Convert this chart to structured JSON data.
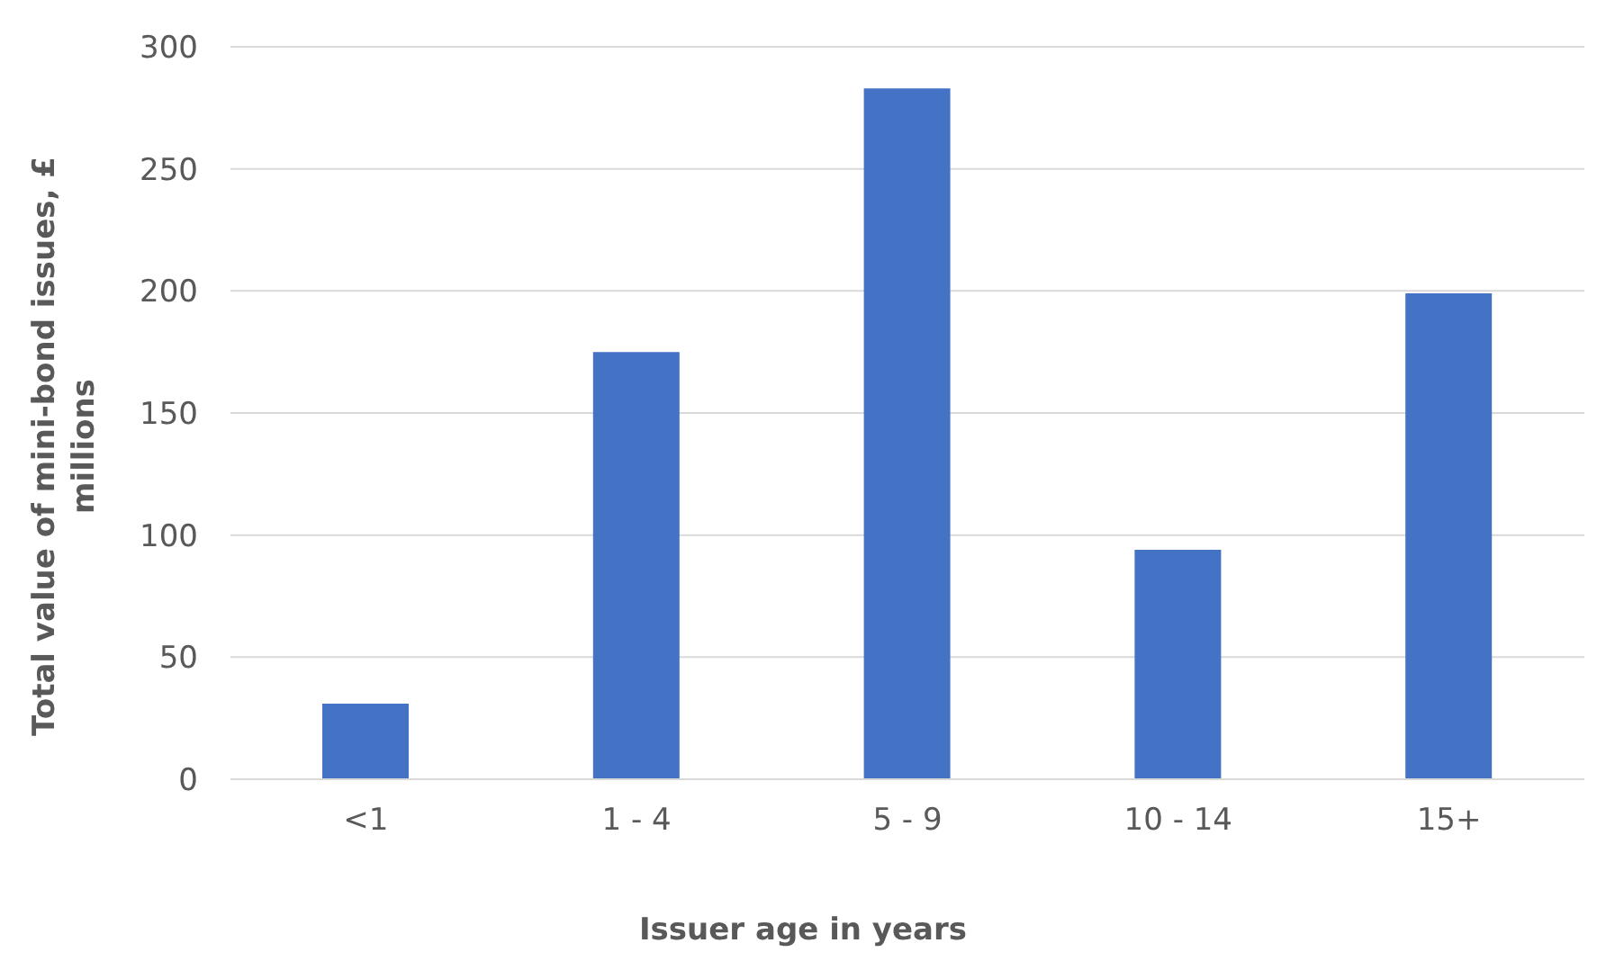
{
  "chart_data": {
    "type": "bar",
    "xlabel": "Issuer age in years",
    "ylabel": "Total value of mini-bond issues, £ millions",
    "categories": [
      "<1",
      "1 - 4",
      "5 - 9",
      "10 - 14",
      "15+"
    ],
    "values": [
      31,
      175,
      283,
      94,
      199
    ],
    "color": "#4472c4",
    "ylim": [
      0,
      300
    ],
    "yticks": [
      0,
      50,
      100,
      150,
      200,
      250,
      300
    ],
    "grid": "y",
    "legend": false
  }
}
